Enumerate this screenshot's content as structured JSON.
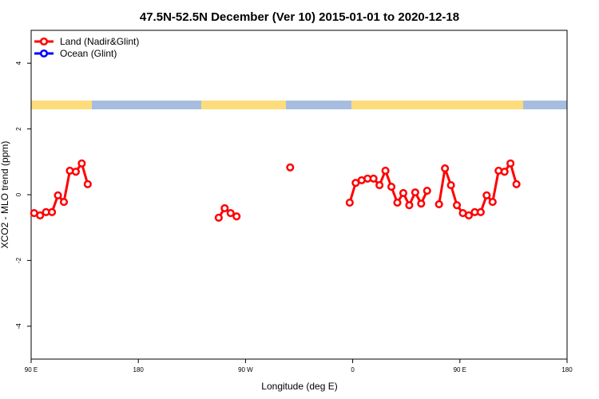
{
  "chart_data": {
    "type": "line",
    "title": "47.5N-52.5N December (Ver 10)   2015-01-01 to 2020-12-18",
    "xlabel": "Longitude (deg E)",
    "ylabel": "XCO2 - MLO trend (ppm)",
    "xlim": [
      90,
      540
    ],
    "ylim": [
      -5,
      5
    ],
    "xticks": [
      {
        "value": 90,
        "label": "90 E"
      },
      180,
      {
        "value": 270,
        "label": "90 W"
      },
      {
        "value": 360,
        "label": "0"
      },
      {
        "value": 450,
        "label": "90 E"
      },
      {
        "value": 540,
        "label": "180"
      }
    ],
    "yticks": [
      -4,
      -2,
      0,
      2,
      4
    ],
    "legend": "upper left",
    "series": [
      {
        "name": "Land (Nadir&Glint)",
        "color": "#ff0000",
        "x": [
          92.5,
          97.5,
          102.5,
          107.5,
          112.5,
          117.5,
          122.5,
          127.5,
          132.5,
          137.5,
          null,
          247.5,
          252.5,
          257.5,
          262.5,
          null,
          307.5,
          null,
          357.5,
          362.5,
          367.5,
          372.5,
          377.5,
          382.5,
          387.5,
          392.5,
          397.5,
          402.5,
          407.5,
          412.5,
          417.5,
          422.5,
          null,
          432.5,
          437.5,
          442.5,
          447.5,
          452.5,
          457.5,
          462.5,
          467.5,
          472.5,
          477.5,
          482.5,
          487.5,
          492.5,
          497.5
        ],
        "values": [
          -0.56,
          -0.63,
          -0.53,
          -0.53,
          -0.02,
          -0.22,
          0.73,
          0.7,
          0.95,
          0.32,
          null,
          -0.7,
          -0.41,
          -0.56,
          -0.66,
          null,
          0.83,
          null,
          -0.24,
          0.36,
          0.44,
          0.49,
          0.49,
          0.29,
          0.73,
          0.24,
          -0.24,
          0.05,
          -0.32,
          0.07,
          -0.27,
          0.12,
          null,
          -0.29,
          0.8,
          0.29,
          -0.32,
          -0.56,
          -0.63,
          -0.53,
          -0.53,
          -0.02,
          -0.22,
          0.73,
          0.7,
          0.95,
          0.32
        ]
      },
      {
        "name": "Ocean (Glint)",
        "color": "#0000ff",
        "x": [],
        "values": []
      }
    ]
  }
}
